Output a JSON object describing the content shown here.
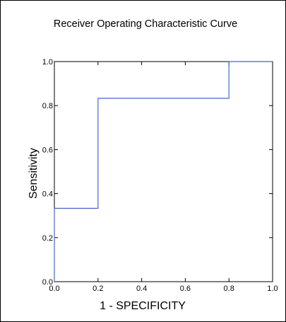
{
  "chart_data": {
    "type": "line",
    "title": "Receiver Operating Characteristic Curve",
    "xlabel": "1 - SPECIFICITY",
    "ylabel": "Sensitivity",
    "xlim": [
      0,
      1
    ],
    "ylim": [
      0,
      1
    ],
    "x_ticks": [
      "0.0",
      "0.2",
      "0.4",
      "0.6",
      "0.8",
      "1.0"
    ],
    "y_ticks": [
      "0.0",
      "0.2",
      "0.4",
      "0.6",
      "0.8",
      "1.0"
    ],
    "grid": false,
    "legend": "none",
    "series": [
      {
        "x": [
          0,
          0,
          0.2,
          0.2,
          0.8,
          0.8,
          1.0
        ],
        "y": [
          0,
          0.333,
          0.333,
          0.833,
          0.833,
          1.0,
          1.0
        ],
        "color": "#4a64c8"
      }
    ]
  }
}
